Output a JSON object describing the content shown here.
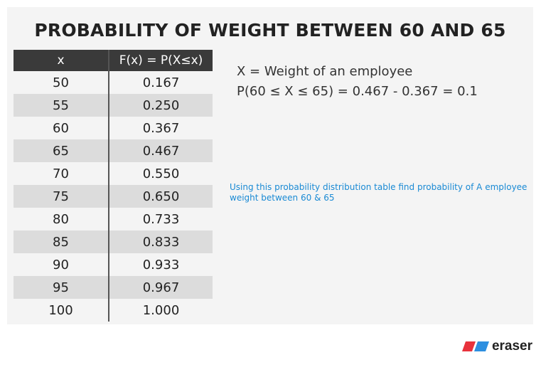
{
  "title": "PROBABILITY OF WEIGHT BETWEEN 60 AND 65",
  "table": {
    "headers": [
      "x",
      "F(x) = P(X≤x)"
    ],
    "rows": [
      [
        "50",
        "0.167"
      ],
      [
        "55",
        "0.250"
      ],
      [
        "60",
        "0.367"
      ],
      [
        "65",
        "0.467"
      ],
      [
        "70",
        "0.550"
      ],
      [
        "75",
        "0.650"
      ],
      [
        "80",
        "0.733"
      ],
      [
        "85",
        "0.833"
      ],
      [
        "90",
        "0.933"
      ],
      [
        "95",
        "0.967"
      ],
      [
        "100",
        "1.000"
      ]
    ]
  },
  "definition": {
    "line1": "X = Weight of an employee",
    "line2": "P(60 ≤ X ≤ 65) = 0.467 - 0.367  = 0.1"
  },
  "note": "Using this probability distribution table  find probability of A employee weight between 60 & 65",
  "brand": {
    "name": "eraser",
    "logo_colors": [
      "#e8323c",
      "#2d8fe0"
    ]
  }
}
